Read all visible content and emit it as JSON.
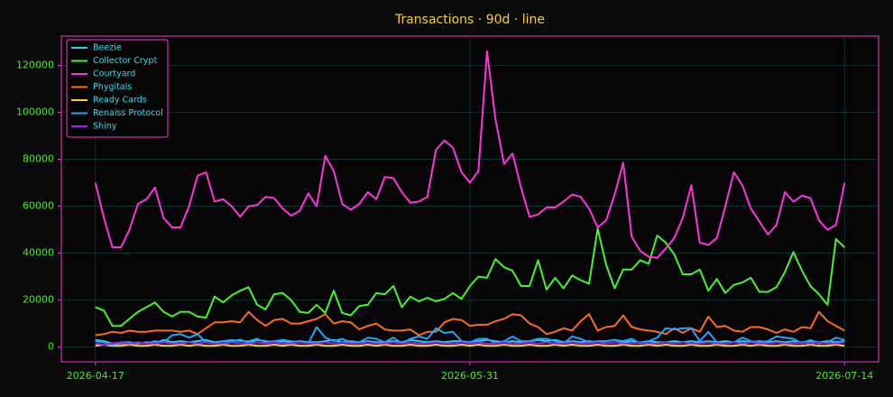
{
  "chart_data": {
    "type": "line",
    "title": "Transactions · 90d · line",
    "x": [
      "2026-04-17",
      "2026-04-18",
      "2026-04-19",
      "2026-04-20",
      "2026-04-21",
      "2026-04-22",
      "2026-04-23",
      "2026-04-24",
      "2026-04-25",
      "2026-04-26",
      "2026-04-27",
      "2026-04-28",
      "2026-04-29",
      "2026-04-30",
      "2026-05-01",
      "2026-05-02",
      "2026-05-03",
      "2026-05-04",
      "2026-05-05",
      "2026-05-06",
      "2026-05-07",
      "2026-05-08",
      "2026-05-09",
      "2026-05-10",
      "2026-05-11",
      "2026-05-12",
      "2026-05-13",
      "2026-05-14",
      "2026-05-15",
      "2026-05-16",
      "2026-05-17",
      "2026-05-18",
      "2026-05-19",
      "2026-05-20",
      "2026-05-21",
      "2026-05-22",
      "2026-05-23",
      "2026-05-24",
      "2026-05-25",
      "2026-05-26",
      "2026-05-27",
      "2026-05-28",
      "2026-05-29",
      "2026-05-30",
      "2026-05-31",
      "2026-06-01",
      "2026-06-02",
      "2026-06-03",
      "2026-06-04",
      "2026-06-05",
      "2026-06-06",
      "2026-06-07",
      "2026-06-08",
      "2026-06-09",
      "2026-06-10",
      "2026-06-11",
      "2026-06-12",
      "2026-06-13",
      "2026-06-14",
      "2026-06-15",
      "2026-06-16",
      "2026-06-17",
      "2026-06-18",
      "2026-06-19",
      "2026-06-20",
      "2026-06-21",
      "2026-06-22",
      "2026-06-23",
      "2026-06-24",
      "2026-06-25",
      "2026-06-26",
      "2026-06-27",
      "2026-06-28",
      "2026-06-29",
      "2026-06-30",
      "2026-07-01",
      "2026-07-02",
      "2026-07-03",
      "2026-07-04",
      "2026-07-05",
      "2026-07-06",
      "2026-07-07",
      "2026-07-08",
      "2026-07-09",
      "2026-07-10",
      "2026-07-11",
      "2026-07-12",
      "2026-07-13",
      "2026-07-14"
    ],
    "xlim": [
      "2026-04-13",
      "2026-07-18"
    ],
    "xticks": [
      "2026-04-17",
      "2026-05-31",
      "2026-07-14"
    ],
    "ylim": [
      -6300,
      132500
    ],
    "yticks": [
      0,
      20000,
      40000,
      60000,
      80000,
      100000,
      120000
    ],
    "grid": true,
    "legend": "upper-left",
    "series": [
      {
        "name": "Beezie",
        "color": "#1fd8ea",
        "values": [
          3000,
          2500,
          1500,
          2000,
          2000,
          1500,
          2000,
          1500,
          3000,
          2000,
          2500,
          2000,
          2500,
          3000,
          2000,
          2500,
          2500,
          3000,
          2000,
          3000,
          2500,
          2000,
          2500,
          2000,
          2500,
          2000,
          2000,
          2500,
          3000,
          2000,
          2500,
          2000,
          2500,
          2000,
          2000,
          2500,
          2000,
          3000,
          2500,
          2000,
          2500,
          2000,
          2500,
          2500,
          2000,
          2500,
          3000,
          2500,
          2000,
          2500,
          2000,
          2500,
          3000,
          2500,
          3000,
          2000,
          2500,
          2000,
          2500,
          2000,
          2500,
          3000,
          2000,
          2500,
          2000,
          2500,
          2000,
          2000,
          2500,
          2000,
          2500,
          2000,
          2500,
          2000,
          2500,
          2000,
          2500,
          2000,
          2500,
          2000,
          2500,
          2000,
          2500,
          2000,
          2500,
          2000,
          2500,
          2000,
          2500
        ]
      },
      {
        "name": "Collector Crypt",
        "color": "#44f52a",
        "values": [
          17000,
          15500,
          9000,
          9000,
          12000,
          15000,
          17000,
          19000,
          15000,
          13000,
          15000,
          15000,
          13000,
          12500,
          21500,
          19000,
          22000,
          24000,
          25500,
          18000,
          16000,
          22500,
          23000,
          20000,
          15000,
          14500,
          18000,
          14500,
          24000,
          14500,
          13500,
          17500,
          18000,
          23000,
          22500,
          26000,
          17000,
          21500,
          19500,
          21000,
          19500,
          20500,
          23000,
          20500,
          26000,
          30000,
          29500,
          37500,
          34000,
          32500,
          26000,
          26000,
          37000,
          24500,
          29500,
          25000,
          30500,
          28500,
          27000,
          50500,
          35000,
          25000,
          33000,
          33000,
          37000,
          35500,
          47500,
          44500,
          39500,
          31000,
          31000,
          33000,
          24000,
          29000,
          23000,
          26500,
          27500,
          29500,
          23500,
          23500,
          25500,
          32000,
          40500,
          32500,
          26000,
          22500,
          18000,
          46000,
          42500
        ]
      },
      {
        "name": "Courtyard",
        "color": "#ff33dd",
        "values": [
          70000,
          55000,
          42500,
          42500,
          50000,
          61000,
          63000,
          68000,
          55000,
          51000,
          51000,
          60000,
          73000,
          74500,
          62000,
          63000,
          60000,
          55500,
          60000,
          60500,
          64000,
          63500,
          59000,
          56000,
          58000,
          65500,
          60000,
          81500,
          75000,
          61000,
          58500,
          61000,
          66000,
          63000,
          72500,
          72000,
          66000,
          61500,
          62000,
          64000,
          84000,
          88000,
          85000,
          74500,
          70000,
          75000,
          126000,
          97000,
          78000,
          82500,
          68000,
          55500,
          56500,
          59500,
          59500,
          62000,
          65000,
          64000,
          59000,
          51000,
          54000,
          65000,
          78500,
          47000,
          41000,
          38500,
          38000,
          42000,
          46500,
          55000,
          69000,
          44500,
          43500,
          46500,
          60000,
          74500,
          69000,
          59000,
          53500,
          48000,
          52000,
          66000,
          62000,
          64500,
          63500,
          54000,
          50000,
          52000,
          70000
        ]
      },
      {
        "name": "Phygitals",
        "color": "#ff6a1a",
        "values": [
          5000,
          5500,
          6500,
          6000,
          7000,
          6500,
          6500,
          7000,
          7000,
          7000,
          6500,
          7000,
          5500,
          8000,
          10500,
          10500,
          11000,
          10500,
          15000,
          11500,
          9000,
          11500,
          12000,
          10000,
          10000,
          11000,
          12000,
          14000,
          10000,
          11000,
          10500,
          7500,
          9000,
          10000,
          7500,
          7000,
          7000,
          7500,
          5000,
          6500,
          6500,
          10500,
          12000,
          11500,
          9000,
          9500,
          9500,
          11000,
          12000,
          14000,
          13500,
          10000,
          8500,
          5500,
          6500,
          8000,
          7000,
          11000,
          14000,
          7000,
          8500,
          9000,
          13500,
          8500,
          7500,
          7000,
          6500,
          5500,
          8000,
          6000,
          8000,
          6500,
          13000,
          8500,
          9000,
          7000,
          6500,
          8500,
          8500,
          7500,
          6000,
          7500,
          6500,
          8500,
          8000,
          15000,
          11000,
          9000,
          7000
        ]
      },
      {
        "name": "Ready Cards",
        "color": "#ffd21a",
        "values": [
          500,
          1000,
          500,
          500,
          1000,
          500,
          500,
          1000,
          500,
          500,
          1000,
          500,
          1000,
          500,
          500,
          1000,
          500,
          500,
          1000,
          500,
          500,
          1000,
          500,
          1000,
          500,
          500,
          1000,
          500,
          500,
          1000,
          500,
          500,
          1000,
          500,
          1000,
          500,
          500,
          1000,
          500,
          500,
          1000,
          500,
          500,
          1000,
          500,
          1000,
          500,
          500,
          1000,
          500,
          500,
          1000,
          500,
          500,
          1000,
          500,
          1000,
          500,
          500,
          1000,
          500,
          500,
          1000,
          500,
          500,
          1000,
          500,
          1000,
          500,
          500,
          1000,
          500,
          500,
          1000,
          500,
          500,
          1000,
          500,
          1000,
          500,
          500,
          1000,
          500,
          500,
          1000,
          500,
          500,
          1000,
          500
        ]
      },
      {
        "name": "Renaiss Protocol",
        "color": "#1aa8ff",
        "values": [
          2500,
          2000,
          1000,
          1500,
          1500,
          2000,
          1500,
          2500,
          2000,
          5000,
          5500,
          4000,
          5500,
          2000,
          1500,
          2500,
          3000,
          2500,
          2500,
          3500,
          2000,
          2500,
          3000,
          2500,
          2000,
          1500,
          8500,
          4000,
          2500,
          3500,
          2000,
          2000,
          4000,
          3500,
          2000,
          4000,
          1500,
          3500,
          4500,
          3500,
          8000,
          6000,
          6500,
          2500,
          2000,
          3500,
          3500,
          1500,
          2500,
          4500,
          2500,
          2500,
          3500,
          3500,
          2500,
          1500,
          4500,
          3500,
          2000,
          2500,
          2500,
          3000,
          2500,
          3500,
          1500,
          2500,
          4000,
          8000,
          7500,
          8000,
          8000,
          2500,
          6500,
          2000,
          1500,
          2000,
          4000,
          2500,
          2000,
          2500,
          4500,
          4000,
          3500,
          1500,
          3000,
          1500,
          2000,
          4000,
          3000
        ]
      },
      {
        "name": "Shiny",
        "color": "#a21aff",
        "values": [
          1500,
          1000,
          1500,
          2000,
          1500,
          2000,
          1500,
          1500,
          2000,
          1500,
          1500,
          2000,
          1500,
          2000,
          1500,
          1500,
          2000,
          1500,
          1500,
          2000,
          1500,
          2000,
          1500,
          1500,
          2000,
          1500,
          1500,
          2000,
          1500,
          2000,
          1500,
          1500,
          2000,
          1500,
          1500,
          2000,
          1500,
          2000,
          1500,
          1500,
          2000,
          1500,
          1500,
          2000,
          1500,
          2000,
          1500,
          1500,
          2000,
          1500,
          1500,
          2000,
          1500,
          2000,
          1500,
          1500,
          2000,
          1500,
          1500,
          2000,
          1500,
          2000,
          1500,
          1500,
          2000,
          1500,
          1500,
          2000,
          1500,
          2000,
          1500,
          1500,
          2000,
          1500,
          1500,
          2000,
          1500,
          2000,
          1500,
          1500,
          2000,
          1500,
          1500,
          2000,
          1500,
          2000,
          1500,
          1500,
          2000
        ]
      }
    ]
  }
}
